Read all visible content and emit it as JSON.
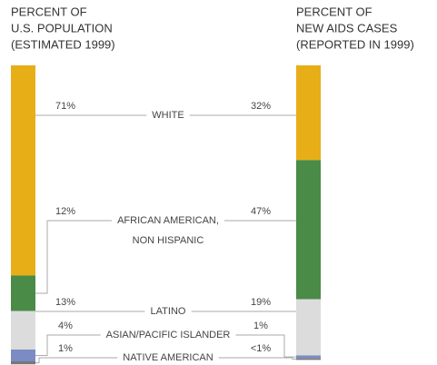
{
  "chart_data": {
    "type": "bar",
    "categories": [
      [
        "WHITE"
      ],
      [
        "AFRICAN AMERICAN,",
        "NON HISPANIC"
      ],
      [
        "LATINO"
      ],
      [
        "ASIAN/PACIFIC ISLANDER"
      ],
      [
        "NATIVE AMERICAN"
      ]
    ],
    "colors": [
      "#e8ae17",
      "#4a8b47",
      "#dcdcdc",
      "#7b8cc4",
      "#777777"
    ],
    "series": [
      {
        "name": [
          "PERCENT OF",
          "U.S. POPULATION",
          "(ESTIMATED 1999)"
        ],
        "values": [
          71,
          12,
          13,
          4,
          1
        ],
        "value_labels": [
          "71%",
          "12%",
          "13%",
          "4%",
          "1%"
        ]
      },
      {
        "name": [
          "PERCENT OF",
          "NEW AIDS CASES",
          "(REPORTED IN 1999)"
        ],
        "values": [
          32,
          47,
          19,
          1,
          0.5
        ],
        "value_labels": [
          "32%",
          "47%",
          "19%",
          "1%",
          "<1%"
        ]
      }
    ]
  }
}
